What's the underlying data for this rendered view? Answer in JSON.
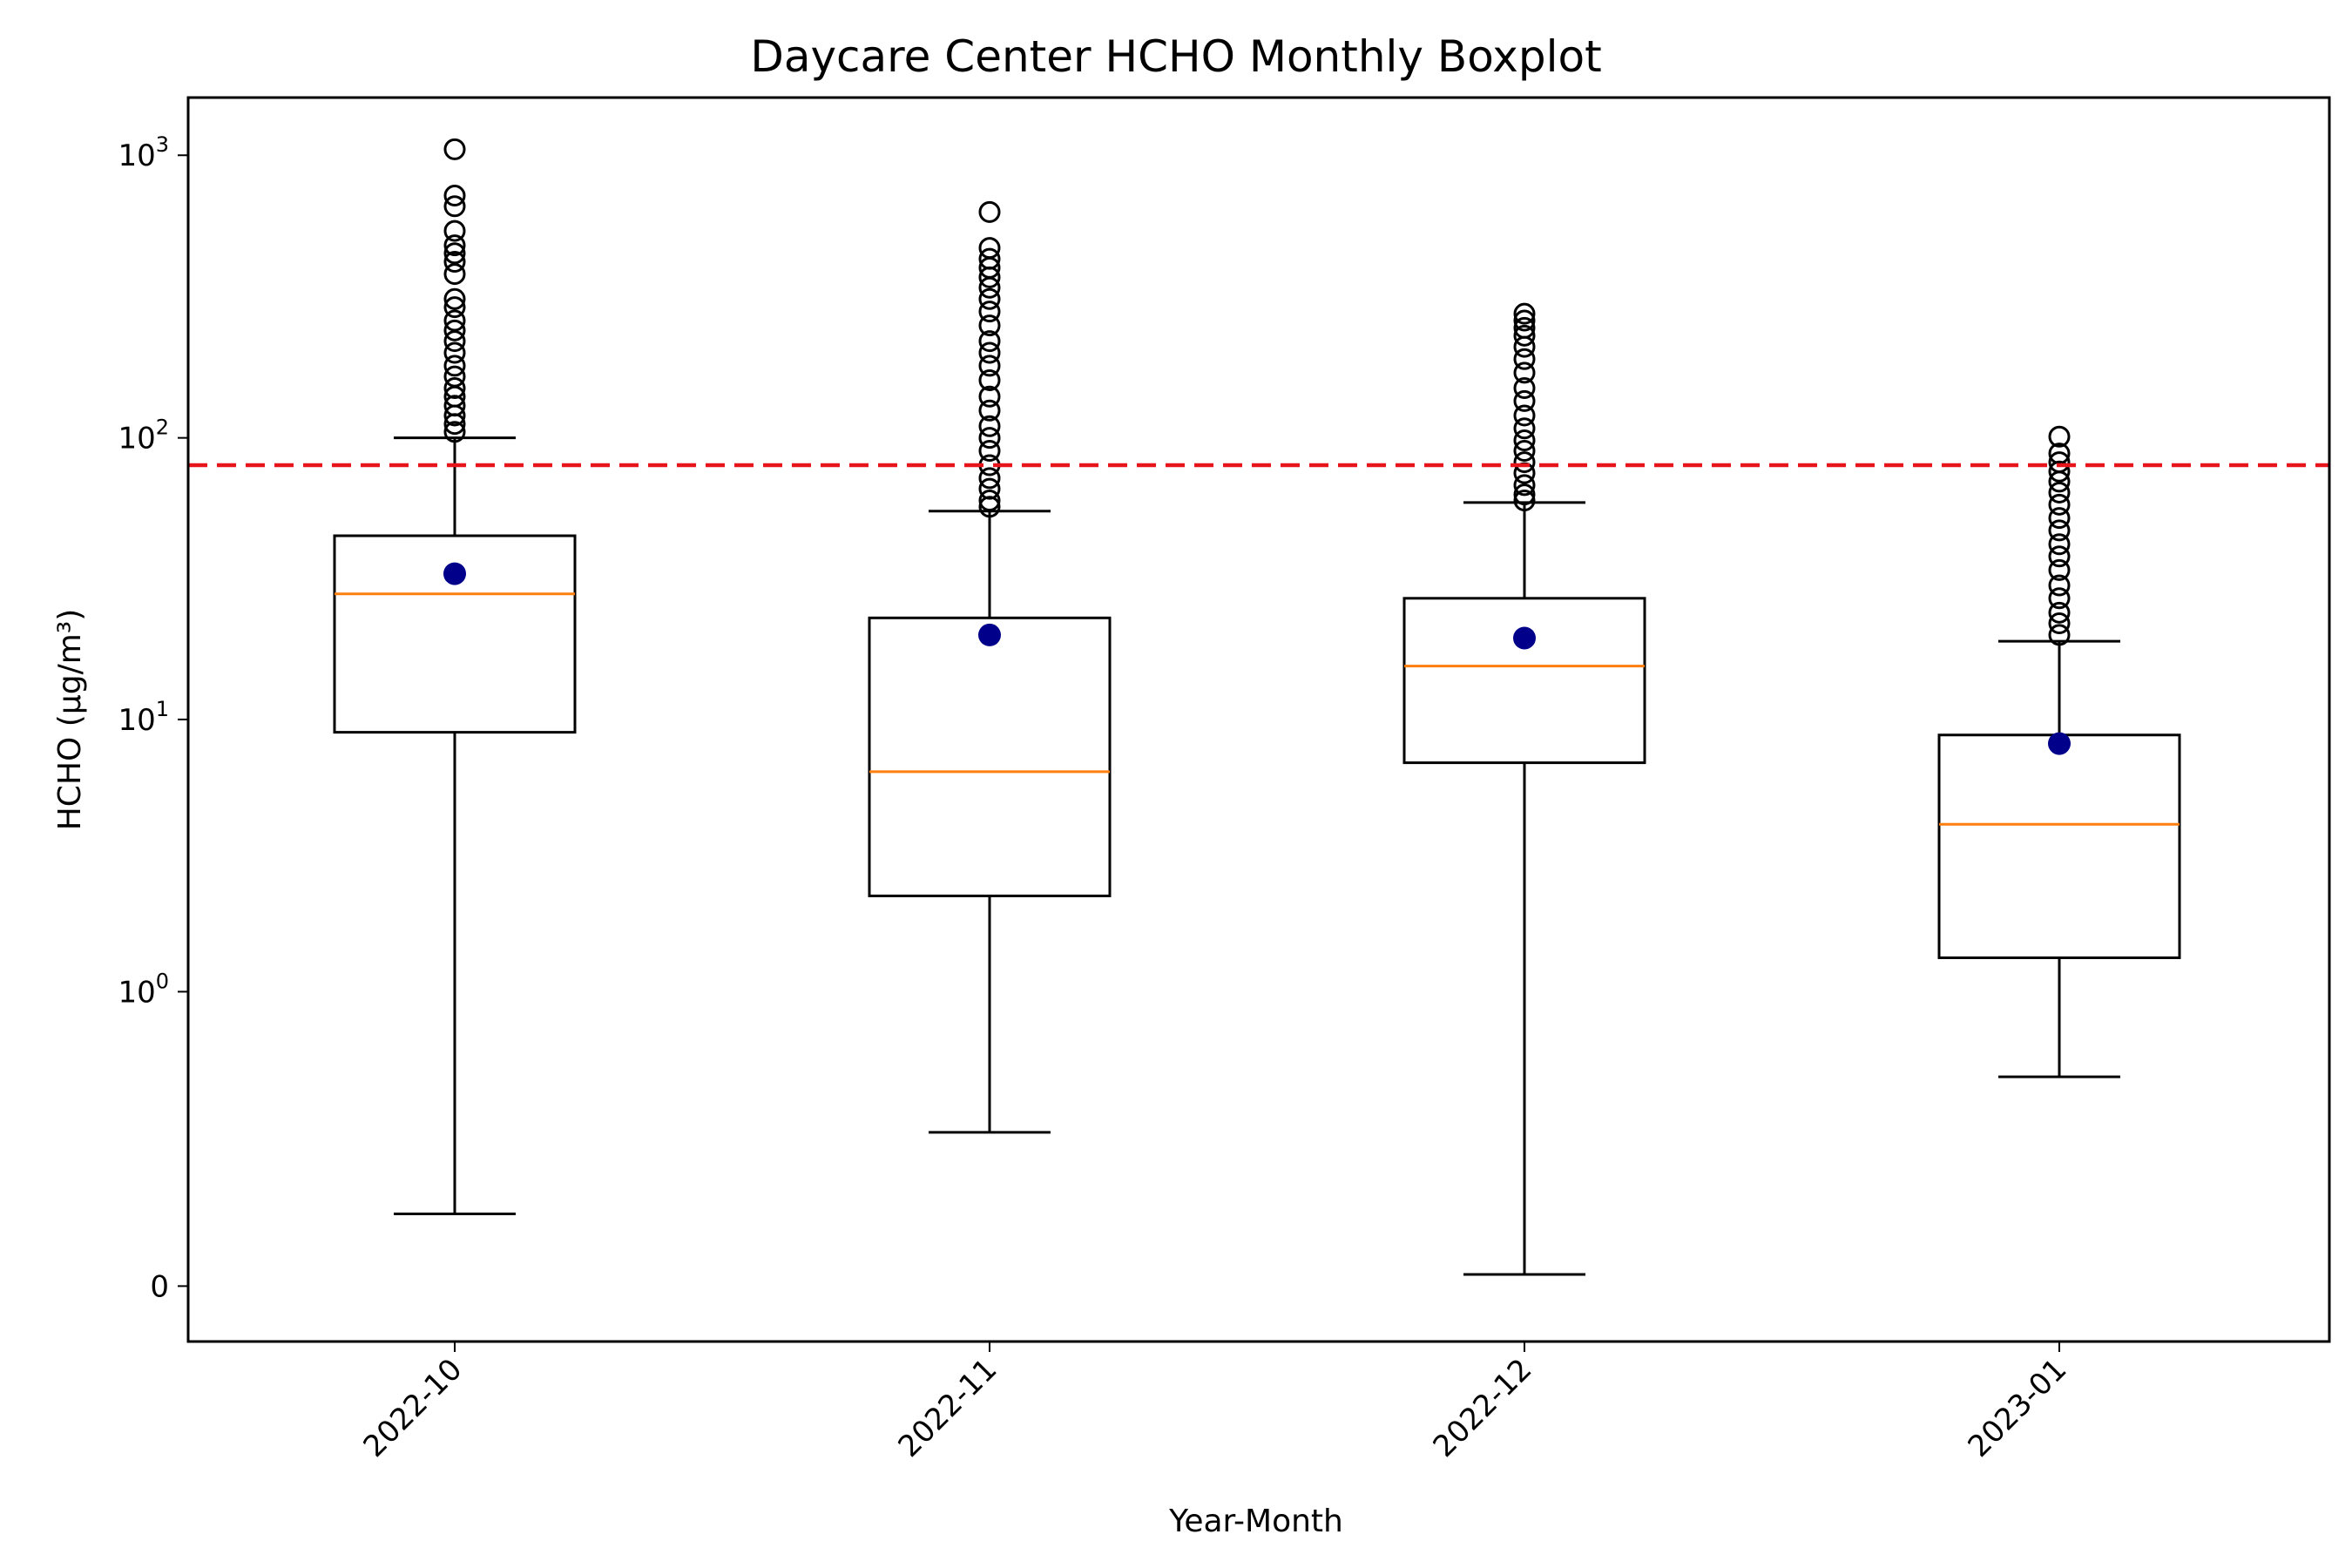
{
  "chart_data": {
    "type": "boxplot",
    "title": "Daycare Center HCHO Monthly Boxplot",
    "xlabel": "Year-Month",
    "ylabel": "HCHO (μg/m³)",
    "yscale": "symlog",
    "ylim": [
      -0.35,
      1600
    ],
    "yticks": [
      {
        "value": 0,
        "label": "0"
      },
      {
        "value": 1,
        "base": "10",
        "exp": "0"
      },
      {
        "value": 10,
        "base": "10",
        "exp": "1"
      },
      {
        "value": 100,
        "base": "10",
        "exp": "2"
      },
      {
        "value": 1000,
        "base": "10",
        "exp": "3"
      }
    ],
    "grid": false,
    "reference_line": {
      "value": 80,
      "color": "#e8141b",
      "style": "dashed"
    },
    "median_color": "#ff7f0e",
    "mean_color": "#00008b",
    "categories": [
      "2022-10",
      "2022-11",
      "2022-12",
      "2023-01"
    ],
    "boxes": [
      {
        "category": "2022-10",
        "whisker_low": 0.08,
        "q1": 9.0,
        "median": 28,
        "q3": 45,
        "whisker_high": 100,
        "mean": 33,
        "outliers": [
          1050,
          720,
          660,
          540,
          480,
          450,
          420,
          380,
          310,
          290,
          260,
          240,
          220,
          200,
          180,
          165,
          150,
          140,
          130,
          120,
          112,
          105
        ]
      },
      {
        "category": "2022-11",
        "whisker_low": 0.25,
        "q1": 2.3,
        "median": 6.5,
        "q3": 23,
        "whisker_high": 55,
        "mean": 20,
        "outliers": [
          630,
          470,
          430,
          400,
          370,
          340,
          310,
          280,
          250,
          220,
          200,
          180,
          160,
          140,
          125,
          110,
          100,
          90,
          80,
          72,
          66,
          60,
          57
        ]
      },
      {
        "category": "2022-12",
        "whisker_low": 0.01,
        "q1": 7.0,
        "median": 15.5,
        "q3": 27,
        "whisker_high": 59,
        "mean": 19.5,
        "outliers": [
          275,
          260,
          245,
          230,
          210,
          190,
          170,
          150,
          135,
          120,
          108,
          98,
          90,
          82,
          75,
          68,
          63,
          60
        ]
      },
      {
        "category": "2023-01",
        "whisker_low": 0.45,
        "q1": 1.35,
        "median": 4.2,
        "q3": 8.8,
        "whisker_high": 19,
        "mean": 8.2,
        "outliers": [
          101,
          88,
          82,
          76,
          70,
          64,
          58,
          52,
          47,
          42,
          38,
          34,
          30,
          27,
          24,
          22,
          20
        ]
      }
    ]
  }
}
